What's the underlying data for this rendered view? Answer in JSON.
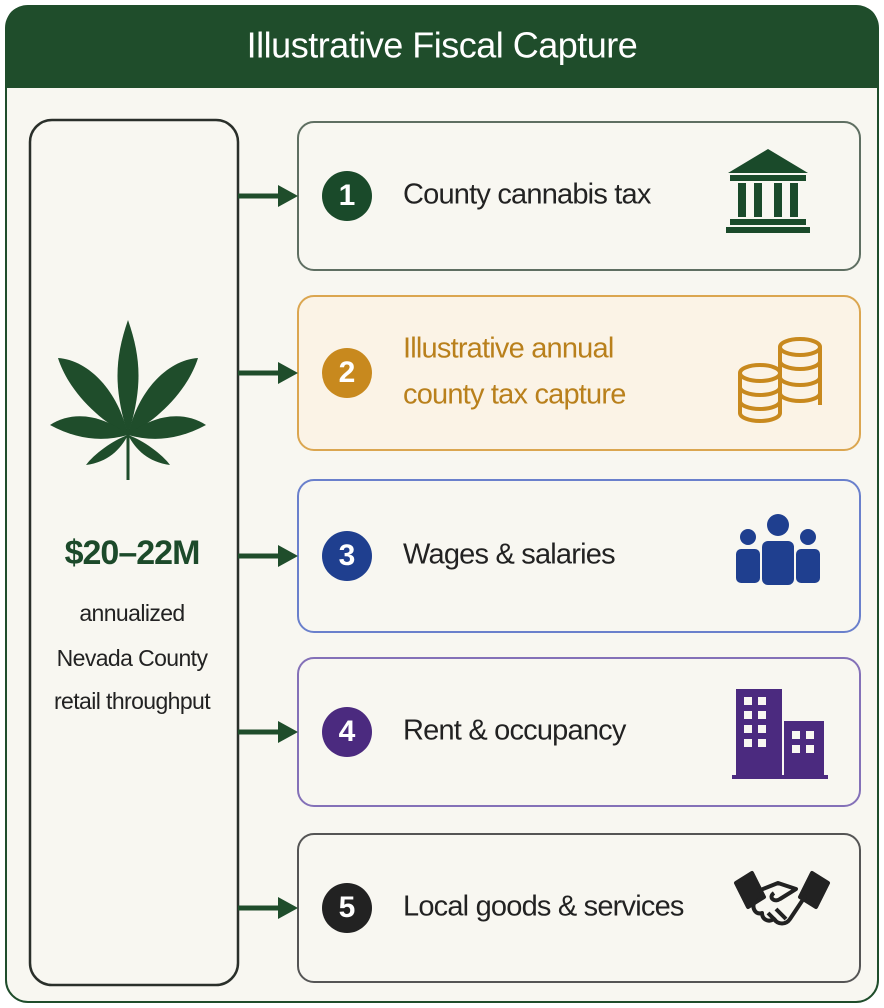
{
  "header": {
    "title": "Illustrative Fiscal Capture"
  },
  "source": {
    "amount": "$20–22M",
    "description": [
      "annualized",
      "Nevada County",
      "retail throughput"
    ]
  },
  "items": [
    {
      "number": "1",
      "label": [
        "County cannabis tax"
      ]
    },
    {
      "number": "2",
      "label": [
        "Illustrative annual",
        "county tax capture"
      ]
    },
    {
      "number": "3",
      "label": [
        "Wages & salaries"
      ]
    },
    {
      "number": "4",
      "label": [
        "Rent & occupancy"
      ]
    },
    {
      "number": "5",
      "label": [
        "Local goods & services"
      ]
    }
  ]
}
